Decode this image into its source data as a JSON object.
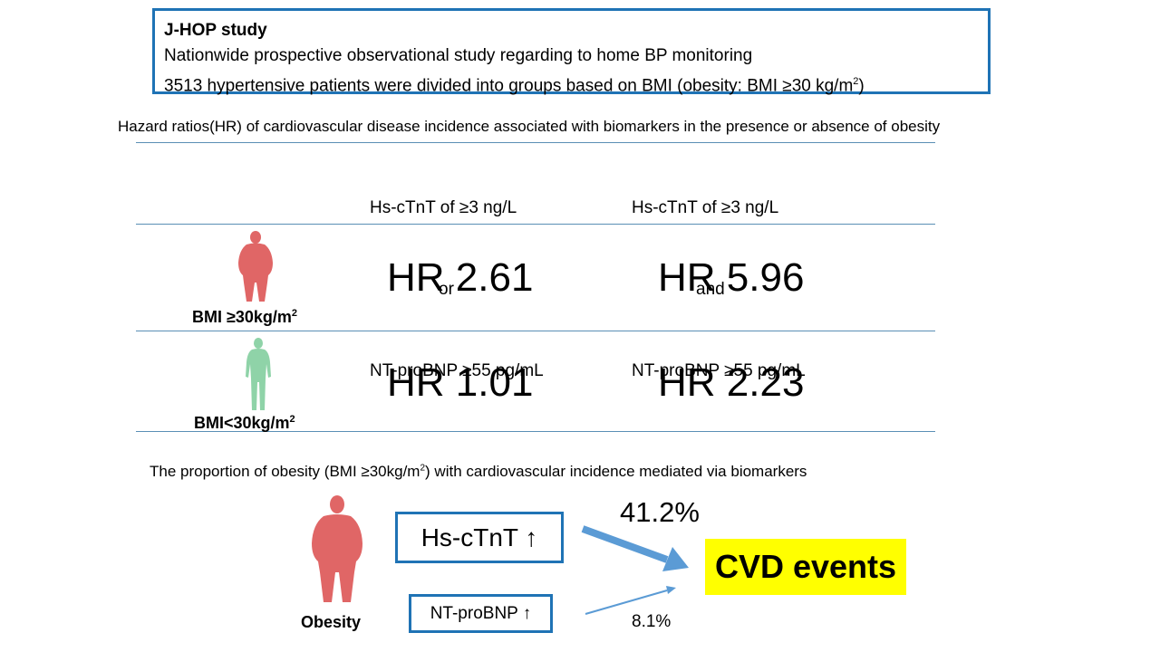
{
  "info": {
    "title": "J-HOP study",
    "line1": "Nationwide prospective observational study regarding to home BP monitoring",
    "line2_pre": "3513 hypertensive patients were divided into groups based on BMI (obesity: BMI ≥30 kg/m",
    "line2_sup": "2",
    "line2_post": ")"
  },
  "table": {
    "caption": "Hazard ratios(HR)  of cardiovascular disease incidence associated with biomarkers in the presence or absence of obesity",
    "col1": {
      "line1": "Hs-cTnT of ≥3 ng/L",
      "line2": "or",
      "line3": "NT-proBNP ≥55 pg/mL"
    },
    "col2": {
      "line1": "Hs-cTnT of ≥3 ng/L",
      "line2": "and",
      "line3": "NT-proBNP ≥55 pg/mL"
    },
    "rows": [
      {
        "label": "BMI ≥30kg/m",
        "label_sup": "2",
        "figure_color": "#e06666",
        "hr_or": "HR 2.61",
        "hr_and": "HR 5.96"
      },
      {
        "label": "BMI<30kg/m",
        "label_sup": "2",
        "figure_color": "#8fd3a8",
        "hr_or": "HR 1.01",
        "hr_and": "HR 2.23"
      }
    ]
  },
  "mediation": {
    "caption_pre": "The proportion of obesity (BMI ≥30kg/m",
    "caption_sup": "2",
    "caption_post": ") with cardiovascular incidence mediated via biomarkers",
    "obesity_label": "Obesity",
    "figure_color": "#e06666",
    "marker1": "Hs-cTnT ↑",
    "marker2": "NT-proBNP ↑",
    "pct1": "41.2%",
    "pct2": "8.1%",
    "outcome": "CVD events",
    "arrow_color": "#5b9bd5",
    "box_color": "#1f73b5",
    "highlight_color": "#ffff00"
  }
}
